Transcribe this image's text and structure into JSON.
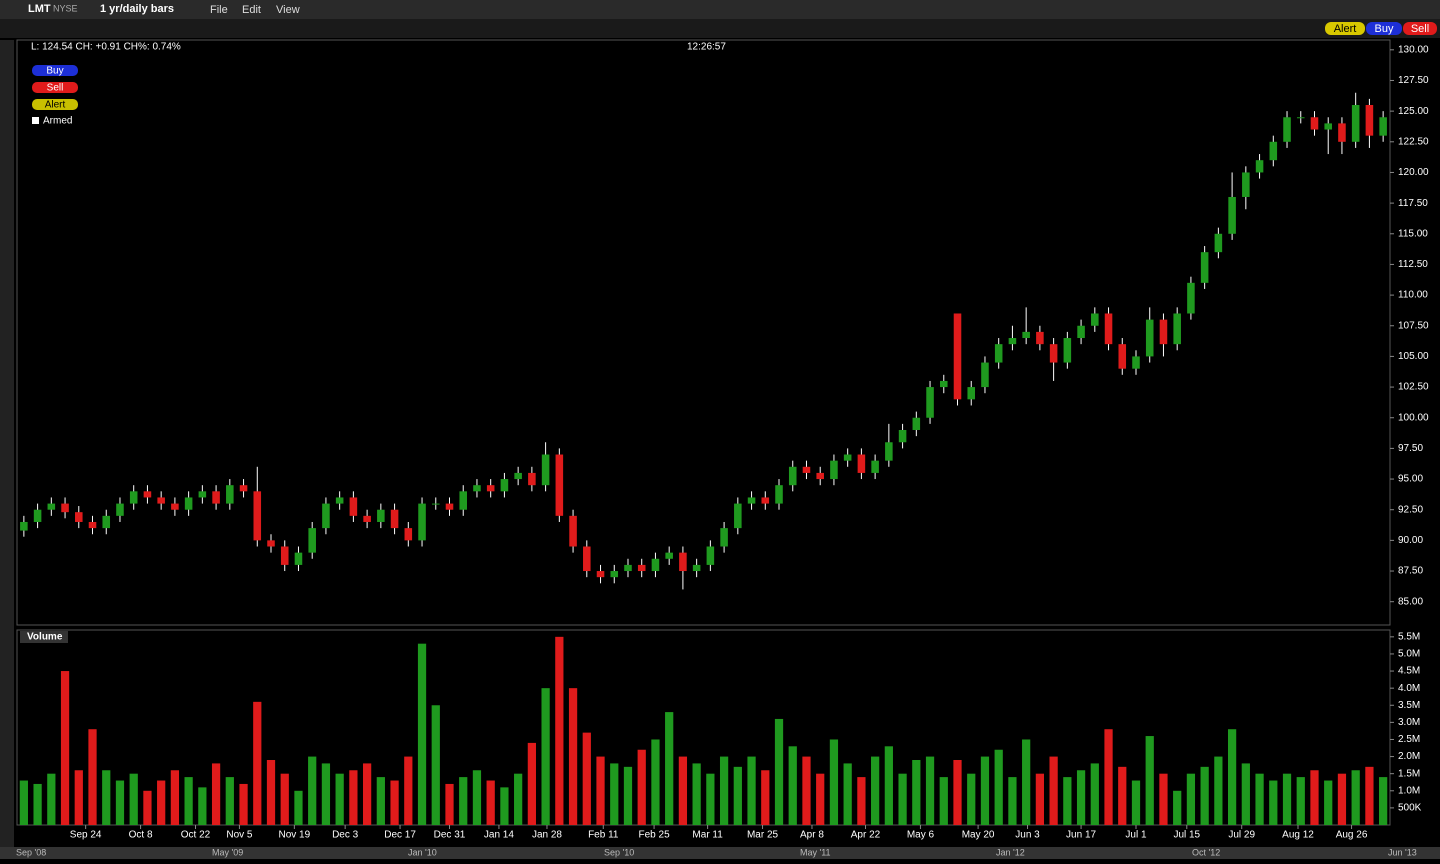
{
  "toolbar": {
    "symbol": "LMT",
    "exchange": "NYSE",
    "period": "1 yr/daily bars",
    "menus": [
      "File",
      "Edit",
      "View"
    ],
    "buttons": [
      "Alert",
      "Buy",
      "Sell"
    ]
  },
  "quote": {
    "last": "L: 124.54 CH: +0.91 CH%: 0.74%",
    "time": "12:26:57"
  },
  "order_panel": {
    "buy": "Buy",
    "sell": "Sell",
    "alert": "Alert",
    "armed": "Armed"
  },
  "timeline": [
    "Sep '08",
    "May '09",
    "Jan '10",
    "Sep '10",
    "May '11",
    "Jan '12",
    "Oct '12",
    "Jun '13"
  ],
  "chart_data": [
    {
      "type": "candlestick",
      "up_color": "#1f9a1f",
      "down_color": "#e01b1b",
      "grid": false,
      "xlim": [
        -0.5,
        99.5
      ],
      "ylim": [
        83.1,
        130.8
      ],
      "yticks": [
        {
          "value": 85,
          "label": "85.00"
        },
        {
          "value": 87.5,
          "label": "87.50"
        },
        {
          "value": 90,
          "label": "90.00"
        },
        {
          "value": 92.5,
          "label": "92.50"
        },
        {
          "value": 95,
          "label": "95.00"
        },
        {
          "value": 97.5,
          "label": "97.50"
        },
        {
          "value": 100,
          "label": "100.00"
        },
        {
          "value": 102.5,
          "label": "102.50"
        },
        {
          "value": 105,
          "label": "105.00"
        },
        {
          "value": 107.5,
          "label": "107.50"
        },
        {
          "value": 110,
          "label": "110.00"
        },
        {
          "value": 112.5,
          "label": "112.50"
        },
        {
          "value": 115,
          "label": "115.00"
        },
        {
          "value": 117.5,
          "label": "117.50"
        },
        {
          "value": 120,
          "label": "120.00"
        },
        {
          "value": 122.5,
          "label": "122.50"
        },
        {
          "value": 125,
          "label": "125.00"
        },
        {
          "value": 127.5,
          "label": "127.50"
        },
        {
          "value": 130,
          "label": "130.00"
        }
      ],
      "open": [
        90.8,
        91.5,
        92.5,
        93,
        92.3,
        91.5,
        91,
        92,
        93,
        94,
        93.5,
        93,
        92.5,
        93.5,
        94,
        93,
        94.5,
        94,
        90,
        89.5,
        88,
        89,
        91,
        93,
        93.5,
        92,
        91.5,
        92.5,
        91,
        90,
        93,
        93,
        92.5,
        94,
        94.5,
        94,
        95,
        95.5,
        94.5,
        97,
        92,
        89.5,
        87.5,
        87,
        87.5,
        88,
        87.5,
        88.5,
        89,
        87.5,
        88,
        89.5,
        91,
        93,
        93.5,
        93,
        94.5,
        96,
        95.5,
        95,
        96.5,
        97,
        95.5,
        96.5,
        98,
        99,
        100,
        102.5,
        108.5,
        101.5,
        102.5,
        104.5,
        106,
        106.5,
        107,
        106,
        104.5,
        106.5,
        107.5,
        108.5,
        106,
        104,
        105,
        108,
        106,
        108.5,
        111,
        113.5,
        115,
        118,
        120,
        121,
        122.5,
        124.5,
        124.5,
        123.5,
        124,
        122.5,
        125.5,
        123
      ],
      "high": [
        92,
        93,
        93.5,
        93.5,
        92.8,
        92,
        92.5,
        93.5,
        94.5,
        94.5,
        94,
        93.5,
        94,
        94.5,
        94.5,
        95,
        95,
        96,
        90.5,
        90,
        89.5,
        91.5,
        93.5,
        94,
        94,
        92.5,
        93,
        93,
        91.5,
        93.5,
        93.5,
        93.5,
        94.5,
        95,
        95,
        95.5,
        96,
        96,
        98,
        97.5,
        92.5,
        90,
        88,
        88,
        88.5,
        88.5,
        89,
        89.5,
        89.5,
        88.5,
        90,
        91.5,
        93.5,
        94,
        94,
        95,
        96.5,
        96.5,
        96,
        97,
        97.5,
        97.5,
        97,
        99.5,
        99.5,
        100.5,
        103,
        103.5,
        108.5,
        103,
        105,
        106.5,
        107.5,
        109,
        107.5,
        106.5,
        107,
        108,
        109,
        109,
        106.5,
        105.5,
        109,
        108.5,
        109,
        111.5,
        114,
        115.5,
        120,
        120.5,
        121.5,
        123,
        125,
        125,
        125,
        124.5,
        124.5,
        126.5,
        126,
        125
      ],
      "low": [
        90.3,
        91,
        92,
        91.8,
        91,
        90.5,
        90.5,
        91.5,
        92.5,
        93,
        92.5,
        92,
        92,
        93,
        92.5,
        92.5,
        93.5,
        89.5,
        89,
        87.5,
        87.5,
        88.5,
        90.5,
        92.5,
        91.5,
        91,
        91,
        90.5,
        89.5,
        89.5,
        92.5,
        92,
        92,
        93.5,
        93.5,
        93.5,
        94.5,
        94,
        94,
        91.5,
        89,
        87,
        86.5,
        86.5,
        87,
        87,
        87,
        88,
        86,
        87,
        87.5,
        89,
        90.5,
        92.5,
        92.5,
        92.5,
        94,
        95,
        94.5,
        94.5,
        96,
        95,
        95,
        96,
        97.5,
        98.5,
        99.5,
        102,
        101,
        101,
        102,
        104,
        105.5,
        106,
        105.5,
        103,
        104,
        106,
        107,
        105.5,
        103.5,
        103.5,
        104.5,
        105,
        105.5,
        108,
        110.5,
        113,
        114.5,
        117,
        119.5,
        120.5,
        122,
        124,
        123,
        121.5,
        121.5,
        122,
        122,
        122.5
      ],
      "close": [
        91.5,
        92.5,
        93,
        92.3,
        91.5,
        91,
        92,
        93,
        94,
        93.5,
        93,
        92.5,
        93.5,
        94,
        93,
        94.5,
        94,
        90,
        89.5,
        88,
        89,
        91,
        93,
        93.5,
        92,
        91.5,
        92.5,
        91,
        90,
        93,
        93,
        92.5,
        94,
        94.5,
        94,
        95,
        95.5,
        94.5,
        97,
        92,
        89.5,
        87.5,
        87,
        87.5,
        88,
        87.5,
        88.5,
        89,
        87.5,
        88,
        89.5,
        91,
        93,
        93.5,
        93,
        94.5,
        96,
        95.5,
        95,
        96.5,
        97,
        95.5,
        96.5,
        98,
        99,
        100,
        102.5,
        103,
        101.5,
        102.5,
        104.5,
        106,
        106.5,
        107,
        106,
        104.5,
        106.5,
        107.5,
        108.5,
        106,
        104,
        105,
        108,
        106,
        108.5,
        111,
        113.5,
        115,
        118,
        120,
        121,
        122.5,
        124.5,
        124.5,
        123.5,
        124,
        122.5,
        125.5,
        123,
        124.5
      ]
    },
    {
      "type": "bar",
      "title": "Volume",
      "xlim": [
        -0.5,
        99.5
      ],
      "ylim": [
        0,
        5.7
      ],
      "yticks": [
        {
          "value": 0.5,
          "label": "500K"
        },
        {
          "value": 1,
          "label": "1.0M"
        },
        {
          "value": 1.5,
          "label": "1.5M"
        },
        {
          "value": 2,
          "label": "2.0M"
        },
        {
          "value": 2.5,
          "label": "2.5M"
        },
        {
          "value": 3,
          "label": "3.0M"
        },
        {
          "value": 3.5,
          "label": "3.5M"
        },
        {
          "value": 4,
          "label": "4.0M"
        },
        {
          "value": 4.5,
          "label": "4.5M"
        },
        {
          "value": 5,
          "label": "5.0M"
        },
        {
          "value": 5.5,
          "label": "5.5M"
        }
      ],
      "xticks": [
        {
          "value": 4.5,
          "label": "Sep 24"
        },
        {
          "value": 8.5,
          "label": "Oct 8"
        },
        {
          "value": 12.5,
          "label": "Oct 22"
        },
        {
          "value": 15.7,
          "label": "Nov 5"
        },
        {
          "value": 19.7,
          "label": "Nov 19"
        },
        {
          "value": 23.4,
          "label": "Dec 3"
        },
        {
          "value": 27.4,
          "label": "Dec 17"
        },
        {
          "value": 31,
          "label": "Dec 31"
        },
        {
          "value": 34.6,
          "label": "Jan 14"
        },
        {
          "value": 38.1,
          "label": "Jan 28"
        },
        {
          "value": 42.2,
          "label": "Feb 11"
        },
        {
          "value": 45.9,
          "label": "Feb 25"
        },
        {
          "value": 49.8,
          "label": "Mar 11"
        },
        {
          "value": 53.8,
          "label": "Mar 25"
        },
        {
          "value": 57.4,
          "label": "Apr 8"
        },
        {
          "value": 61.3,
          "label": "Apr 22"
        },
        {
          "value": 65.3,
          "label": "May 6"
        },
        {
          "value": 69.5,
          "label": "May 20"
        },
        {
          "value": 73.1,
          "label": "Jun 3"
        },
        {
          "value": 77,
          "label": "Jun 17"
        },
        {
          "value": 81,
          "label": "Jul 1"
        },
        {
          "value": 84.7,
          "label": "Jul 15"
        },
        {
          "value": 88.7,
          "label": "Jul 29"
        },
        {
          "value": 92.8,
          "label": "Aug 12"
        },
        {
          "value": 96.7,
          "label": "Aug 26"
        }
      ],
      "values": [
        1.3,
        1.2,
        1.5,
        4.5,
        1.6,
        2.8,
        1.6,
        1.3,
        1.5,
        1.0,
        1.3,
        1.6,
        1.4,
        1.1,
        1.8,
        1.4,
        1.2,
        3.6,
        1.9,
        1.5,
        1.0,
        2.0,
        1.8,
        1.5,
        1.6,
        1.8,
        1.4,
        1.3,
        2.0,
        5.3,
        3.5,
        1.2,
        1.4,
        1.6,
        1.3,
        1.1,
        1.5,
        2.4,
        4.0,
        5.5,
        4.0,
        2.7,
        2.0,
        1.8,
        1.7,
        2.2,
        2.5,
        3.3,
        2.0,
        1.8,
        1.5,
        2.0,
        1.7,
        2.0,
        1.6,
        3.1,
        2.3,
        2.0,
        1.5,
        2.5,
        1.8,
        1.4,
        2.0,
        2.3,
        1.5,
        1.9,
        2.0,
        1.4,
        1.9,
        1.5,
        2.0,
        2.2,
        1.4,
        2.5,
        1.5,
        2.0,
        1.4,
        1.6,
        1.8,
        2.8,
        1.7,
        1.3,
        2.6,
        1.5,
        1.0,
        1.5,
        1.7,
        2.0,
        2.8,
        1.8,
        1.5,
        1.3,
        1.5,
        1.4,
        1.6,
        1.3,
        1.5,
        1.6,
        1.7,
        1.4
      ]
    }
  ]
}
